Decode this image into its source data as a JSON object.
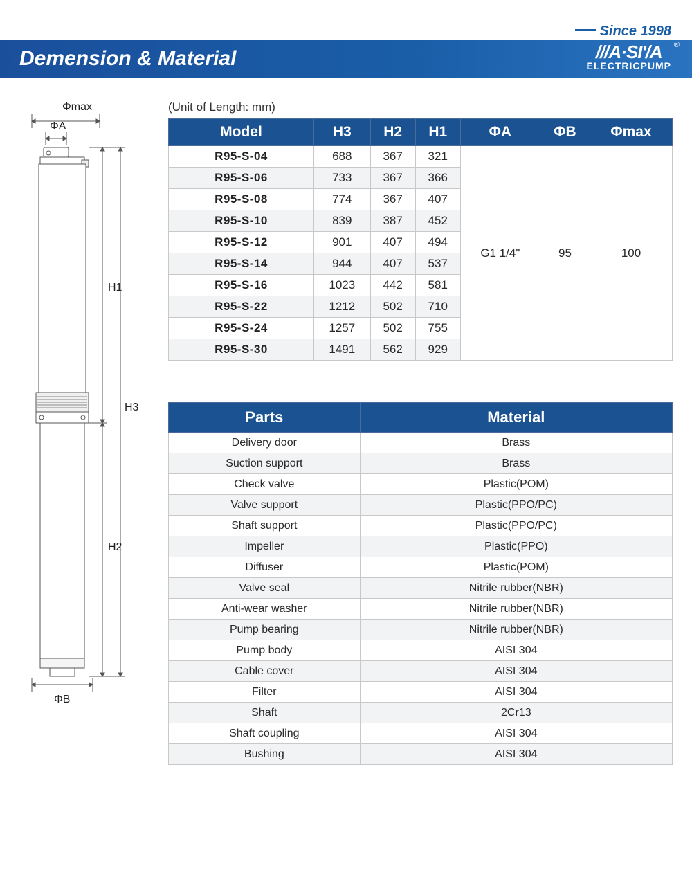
{
  "header": {
    "since": "Since 1998",
    "title": "Demension & Material",
    "logo_top": "///A·SI'/A",
    "logo_sub": "ELECTRICPUMP"
  },
  "unit_note": "(Unit of Length: mm)",
  "dim_table": {
    "columns": [
      "Model",
      "H3",
      "H2",
      "H1",
      "ΦA",
      "ΦB",
      "Φmax"
    ],
    "rows": [
      {
        "model": "R95-S-04",
        "h3": "688",
        "h2": "367",
        "h1": "321"
      },
      {
        "model": "R95-S-06",
        "h3": "733",
        "h2": "367",
        "h1": "366"
      },
      {
        "model": "R95-S-08",
        "h3": "774",
        "h2": "367",
        "h1": "407"
      },
      {
        "model": "R95-S-10",
        "h3": "839",
        "h2": "387",
        "h1": "452"
      },
      {
        "model": "R95-S-12",
        "h3": "901",
        "h2": "407",
        "h1": "494"
      },
      {
        "model": "R95-S-14",
        "h3": "944",
        "h2": "407",
        "h1": "537"
      },
      {
        "model": "R95-S-16",
        "h3": "1023",
        "h2": "442",
        "h1": "581"
      },
      {
        "model": "R95-S-22",
        "h3": "1212",
        "h2": "502",
        "h1": "710"
      },
      {
        "model": "R95-S-24",
        "h3": "1257",
        "h2": "502",
        "h1": "755"
      },
      {
        "model": "R95-S-30",
        "h3": "1491",
        "h2": "562",
        "h1": "929"
      }
    ],
    "phi_a": "G1 1/4\"",
    "phi_b": "95",
    "phi_max": "100",
    "header_bg": "#1a5292",
    "row_alt_bg": "#f2f3f5",
    "border_color": "#c8c8c8"
  },
  "mat_table": {
    "columns": [
      "Parts",
      "Material"
    ],
    "rows": [
      [
        "Delivery door",
        "Brass"
      ],
      [
        "Suction support",
        "Brass"
      ],
      [
        "Check valve",
        "Plastic(POM)"
      ],
      [
        "Valve support",
        "Plastic(PPO/PC)"
      ],
      [
        "Shaft support",
        "Plastic(PPO/PC)"
      ],
      [
        "Impeller",
        "Plastic(PPO)"
      ],
      [
        "Diffuser",
        "Plastic(POM)"
      ],
      [
        "Valve seal",
        "Nitrile rubber(NBR)"
      ],
      [
        "Anti-wear washer",
        "Nitrile rubber(NBR)"
      ],
      [
        "Pump bearing",
        "Nitrile rubber(NBR)"
      ],
      [
        "Pump body",
        "AISI 304"
      ],
      [
        "Cable cover",
        "AISI 304"
      ],
      [
        "Filter",
        "AISI 304"
      ],
      [
        "Shaft",
        "2Cr13"
      ],
      [
        "Shaft coupling",
        "AISI 304"
      ],
      [
        "Bushing",
        "AISI 304"
      ]
    ]
  },
  "diagram": {
    "labels": {
      "phimax": "Φmax",
      "phia": "ΦA",
      "phib": "ΦB",
      "h1": "H1",
      "h2": "H2",
      "h3": "H3"
    },
    "stroke": "#555555",
    "body_fill": "#ffffff"
  },
  "colors": {
    "brand_blue": "#1a5ea8",
    "header_gradient_from": "#1a4f9c",
    "header_gradient_to": "#2a73c0"
  }
}
